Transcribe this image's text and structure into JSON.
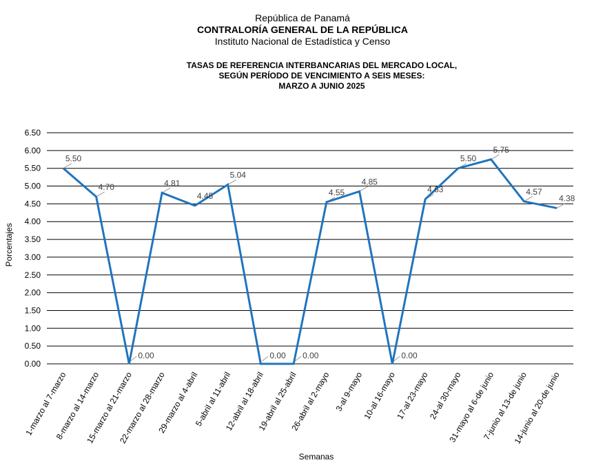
{
  "header": {
    "line1": "República de Panamá",
    "line2": "CONTRALORÍA GENERAL DE LA REPÚBLICA",
    "line3": "Instituto Nacional de Estadística y Censo"
  },
  "chart_data": {
    "type": "line",
    "title_lines": [
      "TASAS DE REFERENCIA INTERBANCARIAS DEL MERCADO LOCAL,",
      "SEGÚN PERÍODO DE VENCIMIENTO A SEIS MESES:",
      "MARZO  A JUNIO 2025"
    ],
    "xlabel": "Semanas",
    "ylabel": "Porcentajes",
    "ylim": [
      0,
      6.5
    ],
    "yticks": [
      "0.00",
      "0.50",
      "1.00",
      "1.50",
      "2.00",
      "2.50",
      "3.00",
      "3.50",
      "4.00",
      "4.50",
      "5.00",
      "5.50",
      "6.00",
      "6.50"
    ],
    "grid": true,
    "legend": "none",
    "color": "#1f74be",
    "categories": [
      "1-marzo al 7-marzo",
      "8-marzo al 14-marzo",
      "15-marzo al 21-marzo",
      "22-marzo al 28-marzo",
      "29-marzo al 4-abril",
      "5-abril al 11-abril",
      "12-abril al 18-abril",
      "19-abril al 25-abril",
      "26-abril al 2-mayo",
      "3-al 9-mayo",
      "10-al 16-mayo",
      "17-al 23-mayo",
      "24-al 30-mayo",
      "31-mayo al 6-de junio",
      "7-junio al 13-de junio",
      "14-junio al 20-de junio"
    ],
    "values": [
      5.5,
      4.7,
      0.0,
      4.81,
      4.45,
      5.04,
      0.0,
      0.0,
      4.55,
      4.85,
      0.0,
      4.63,
      5.5,
      5.75,
      4.57,
      4.38
    ],
    "data_labels": [
      "5.50",
      "4.70",
      "0.00",
      "4.81",
      "4.45",
      "5.04",
      "0.00",
      "0.00",
      "4.55",
      "4.85",
      "0.00",
      "4.63",
      "5.50",
      "5.75",
      "4.57",
      "4.38"
    ]
  }
}
